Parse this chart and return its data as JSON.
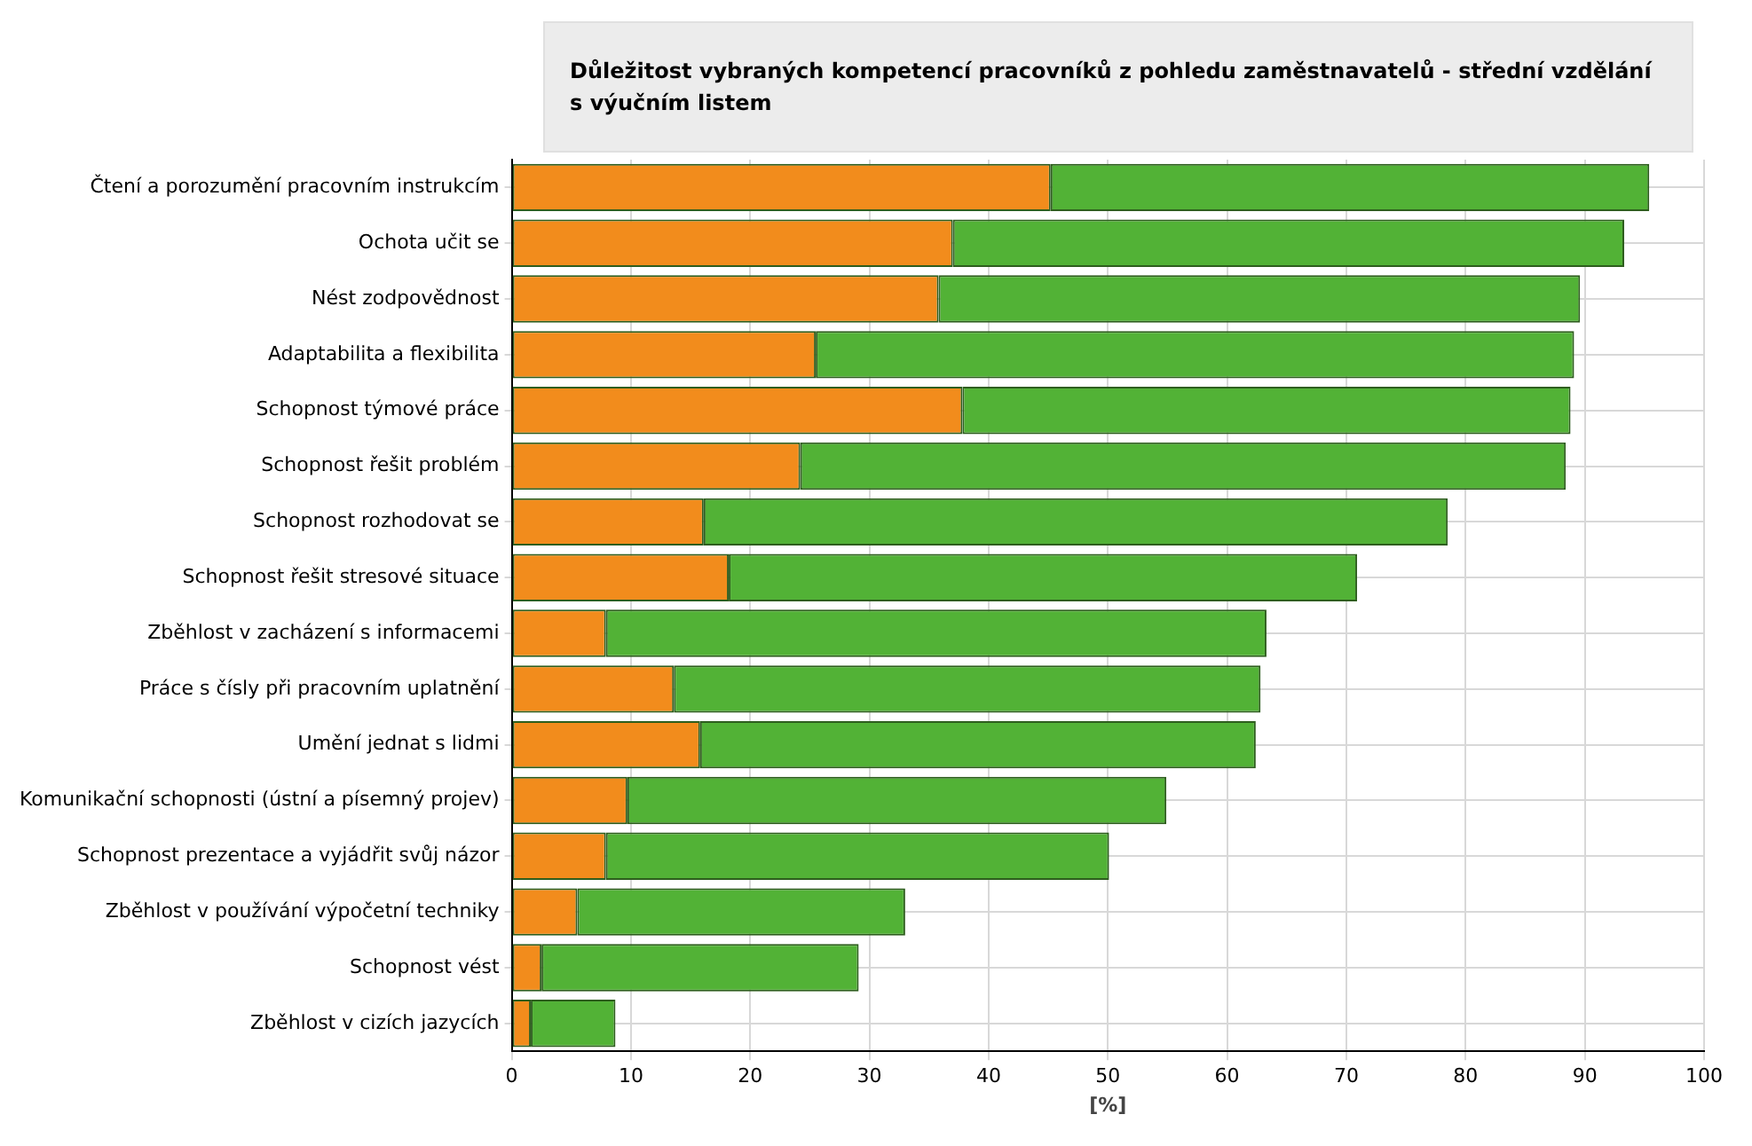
{
  "chart_data": {
    "type": "bar",
    "orientation": "horizontal",
    "stacked": true,
    "title": "Důležitost vybraných kompetencí pracovníků z pohledu zaměstnavatelů - střední vzdělání  s výučním listem",
    "xlabel": "[%]",
    "categories": [
      "Čtení a porozumění pracovním instrukcím",
      "Ochota učit se",
      "Nést zodpovědnost",
      "Adaptabilita a flexibilita",
      "Schopnost týmové práce",
      "Schopnost řešit problém",
      "Schopnost rozhodovat se",
      "Schopnost řešit stresové situace",
      "Zběhlost v zacházení s informacemi",
      "Práce s čísly při pracovním uplatnění",
      "Umění jednat s lidmi",
      "Komunikační schopnosti (ústní a písemný projev)",
      "Schopnost prezentace a vyjádřit svůj názor",
      "Zběhlost v používání výpočetní techniky",
      "Schopnost vést",
      "Zběhlost v cizích jazycích"
    ],
    "series": [
      {
        "color": "#f28c1c",
        "values": [
          45.2,
          37.0,
          35.8,
          25.5,
          37.8,
          24.2,
          16.1,
          18.2,
          7.9,
          13.6,
          15.8,
          9.7,
          7.9,
          5.5,
          2.5,
          1.6
        ]
      },
      {
        "color": "#52b236",
        "values": [
          50.2,
          56.3,
          53.8,
          63.6,
          51.0,
          64.2,
          62.4,
          52.7,
          55.4,
          49.2,
          46.6,
          45.2,
          42.2,
          27.5,
          26.6,
          7.1
        ]
      }
    ],
    "xlim": [
      0,
      100
    ],
    "xticks": [
      0,
      10,
      20,
      30,
      40,
      50,
      60,
      70,
      80,
      90,
      100
    ],
    "grid": true,
    "legend": false
  }
}
